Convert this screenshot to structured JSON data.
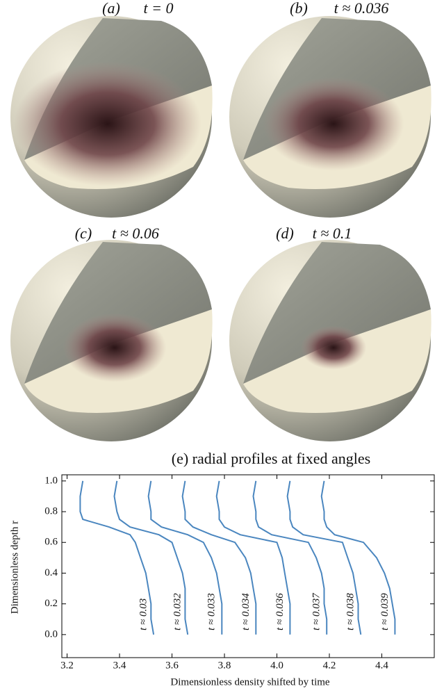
{
  "panels": [
    {
      "label": "(a)",
      "caption": "t = 0"
    },
    {
      "label": "(b)",
      "caption": "t ≈ 0.036"
    },
    {
      "label": "(c)",
      "caption": "t ≈ 0.06"
    },
    {
      "label": "(d)",
      "caption": "t ≈ 0.1"
    }
  ],
  "chart_data": {
    "type": "line",
    "title": "(e)  radial profiles at fixed angles",
    "xlabel": "Dimensionless density shifted by time",
    "ylabel": "Dimensionless depth r",
    "xlim": [
      3.18,
      4.6
    ],
    "ylim": [
      -0.15,
      1.04
    ],
    "xticks": [
      3.2,
      3.4,
      3.6,
      3.8,
      {
        "value": 4,
        "label": "4.0"
      },
      4.2,
      4.4
    ],
    "yticks": [
      {
        "value": 0,
        "label": "0.0"
      },
      0.2,
      0.4,
      0.6,
      0.8,
      {
        "value": 1,
        "label": "1.0"
      }
    ],
    "series": [
      {
        "label": "t ≈ 0.03",
        "color": "#4a86bf",
        "y": [
          1.0,
          0.9,
          0.8,
          0.75,
          0.7,
          0.65,
          0.6,
          0.5,
          0.4,
          0.3,
          0.2,
          0.1,
          0.0
        ],
        "x": [
          3.26,
          3.25,
          3.25,
          3.26,
          3.36,
          3.44,
          3.46,
          3.48,
          3.5,
          3.51,
          3.52,
          3.52,
          3.53
        ]
      },
      {
        "label": "t ≈ 0.032",
        "color": "#4a86bf",
        "y": [
          1.0,
          0.9,
          0.8,
          0.75,
          0.7,
          0.65,
          0.6,
          0.5,
          0.4,
          0.3,
          0.2,
          0.1,
          0.0
        ],
        "x": [
          3.39,
          3.38,
          3.39,
          3.4,
          3.44,
          3.55,
          3.6,
          3.62,
          3.64,
          3.65,
          3.65,
          3.65,
          3.66
        ]
      },
      {
        "label": "t ≈ 0.033",
        "color": "#4a86bf",
        "y": [
          1.0,
          0.9,
          0.8,
          0.75,
          0.7,
          0.65,
          0.6,
          0.5,
          0.4,
          0.3,
          0.2,
          0.1,
          0.0
        ],
        "x": [
          3.52,
          3.51,
          3.52,
          3.52,
          3.56,
          3.66,
          3.72,
          3.75,
          3.77,
          3.78,
          3.79,
          3.79,
          3.79
        ]
      },
      {
        "label": "t ≈ 0.034",
        "color": "#4a86bf",
        "y": [
          1.0,
          0.9,
          0.8,
          0.75,
          0.7,
          0.65,
          0.6,
          0.5,
          0.4,
          0.3,
          0.2,
          0.1,
          0.0
        ],
        "x": [
          3.65,
          3.64,
          3.65,
          3.65,
          3.68,
          3.75,
          3.84,
          3.88,
          3.9,
          3.91,
          3.92,
          3.92,
          3.92
        ]
      },
      {
        "label": "t ≈ 0.036",
        "color": "#4a86bf",
        "y": [
          1.0,
          0.9,
          0.8,
          0.75,
          0.7,
          0.65,
          0.6,
          0.5,
          0.4,
          0.3,
          0.2,
          0.1,
          0.0
        ],
        "x": [
          3.78,
          3.77,
          3.78,
          3.78,
          3.8,
          3.86,
          4.0,
          4.02,
          4.03,
          4.04,
          4.05,
          4.05,
          4.05
        ]
      },
      {
        "label": "t ≈ 0.037",
        "color": "#4a86bf",
        "y": [
          1.0,
          0.9,
          0.8,
          0.75,
          0.7,
          0.65,
          0.6,
          0.5,
          0.4,
          0.3,
          0.2,
          0.1,
          0.0
        ],
        "x": [
          3.92,
          3.91,
          3.92,
          3.92,
          3.93,
          3.98,
          4.12,
          4.15,
          4.17,
          4.18,
          4.18,
          4.19,
          4.19
        ]
      },
      {
        "label": "t ≈ 0.038",
        "color": "#4a86bf",
        "y": [
          1.0,
          0.9,
          0.8,
          0.75,
          0.7,
          0.65,
          0.6,
          0.5,
          0.4,
          0.3,
          0.2,
          0.1,
          0.0
        ],
        "x": [
          4.05,
          4.04,
          4.05,
          4.05,
          4.06,
          4.1,
          4.25,
          4.27,
          4.29,
          4.3,
          4.31,
          4.31,
          4.32
        ]
      },
      {
        "label": "t ≈ 0.039",
        "color": "#4a86bf",
        "y": [
          1.0,
          0.9,
          0.8,
          0.75,
          0.7,
          0.65,
          0.6,
          0.5,
          0.4,
          0.3,
          0.2,
          0.1,
          0.0
        ],
        "x": [
          4.18,
          4.17,
          4.18,
          4.18,
          4.19,
          4.22,
          4.33,
          4.38,
          4.41,
          4.43,
          4.44,
          4.45,
          4.45
        ]
      }
    ]
  }
}
